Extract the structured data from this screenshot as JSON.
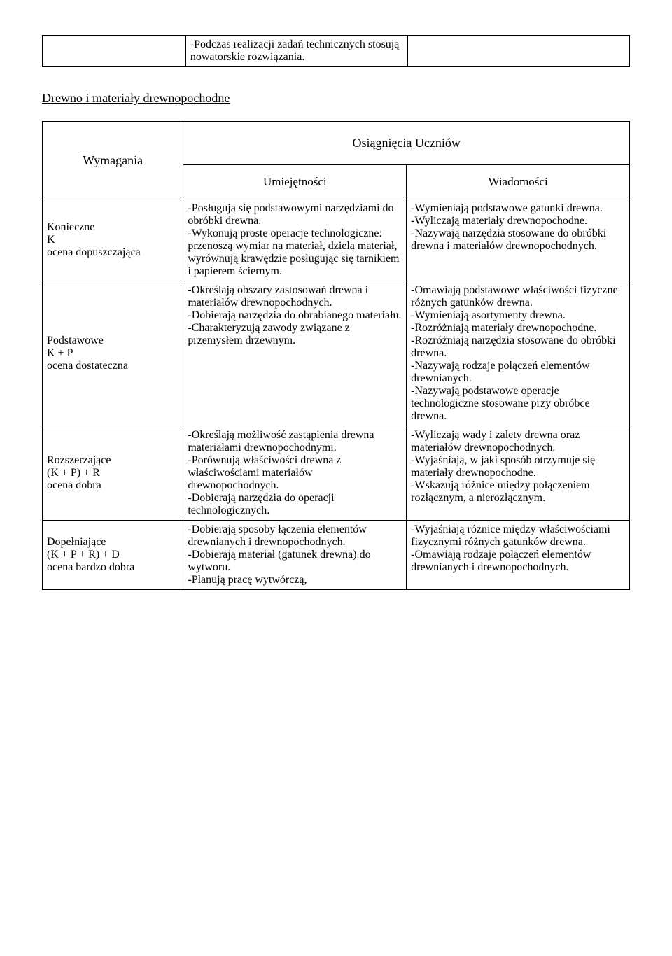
{
  "top_table": {
    "col1": "",
    "col2": "-Podczas realizacji zadań technicznych stosują nowatorskie rozwiązania.",
    "col3": ""
  },
  "section_title": "Drewno i materiały drewnopochodne",
  "headers": {
    "wymagania": "Wymagania",
    "osiagniecia": "Osiągnięcia Uczniów",
    "umiejetnosci": "Umiejętności",
    "wiadomosci": "Wiadomości"
  },
  "rows": [
    {
      "req": "Konieczne\nK\nocena dopuszczająca",
      "um": "-Posługują się podstawowymi narzędziami do obróbki drewna.\n-Wykonują proste operacje technologiczne: przenoszą wymiar na materiał, dzielą materiał, wyrównują krawędzie posługując się tarnikiem i papierem ściernym.",
      "wi": "-Wymieniają podstawowe gatunki drewna.\n-Wyliczają materiały drewnopochodne.\n-Nazywają narzędzia stosowane do obróbki drewna i materiałów drewnopochodnych."
    },
    {
      "req": "Podstawowe\nK + P\nocena dostateczna",
      "um": "-Określają obszary zastosowań drewna i materiałów drewnopochodnych.\n-Dobierają narzędzia do obrabianego materiału.\n-Charakteryzują zawody związane z przemysłem drzewnym.",
      "wi": "-Omawiają podstawowe właściwości fizyczne różnych gatunków drewna.\n-Wymieniają asortymenty drewna.\n-Rozróżniają materiały drewnopochodne.\n-Rozróżniają narzędzia stosowane do obróbki drewna.\n-Nazywają rodzaje połączeń elementów drewnianych.\n-Nazywają podstawowe operacje technologiczne stosowane przy obróbce drewna."
    },
    {
      "req": "Rozszerzające\n(K + P) + R\nocena dobra",
      "um": "-Określają możliwość zastąpienia drewna materiałami drewnopochodnymi.\n-Porównują właściwości drewna z właściwościami materiałów drewnopochodnych.\n-Dobierają narzędzia do operacji technologicznych.",
      "wi": "-Wyliczają wady i zalety drewna oraz materiałów drewnopochodnych.\n-Wyjaśniają, w jaki sposób otrzymuje się materiały drewnopochodne.\n-Wskazują różnice między połączeniem rozłącznym, a nierozłącznym."
    },
    {
      "req": "Dopełniające\n(K + P + R) + D\nocena bardzo dobra",
      "um": "-Dobierają sposoby łączenia elementów drewnianych i drewnopochodnych.\n-Dobierają materiał (gatunek drewna) do wytworu.\n-Planują pracę wytwórczą,",
      "wi": "-Wyjaśniają różnice między właściwościami fizycznymi różnych gatunków drewna.\n-Omawiają rodzaje połączeń elementów drewnianych i drewnopochodnych."
    }
  ]
}
